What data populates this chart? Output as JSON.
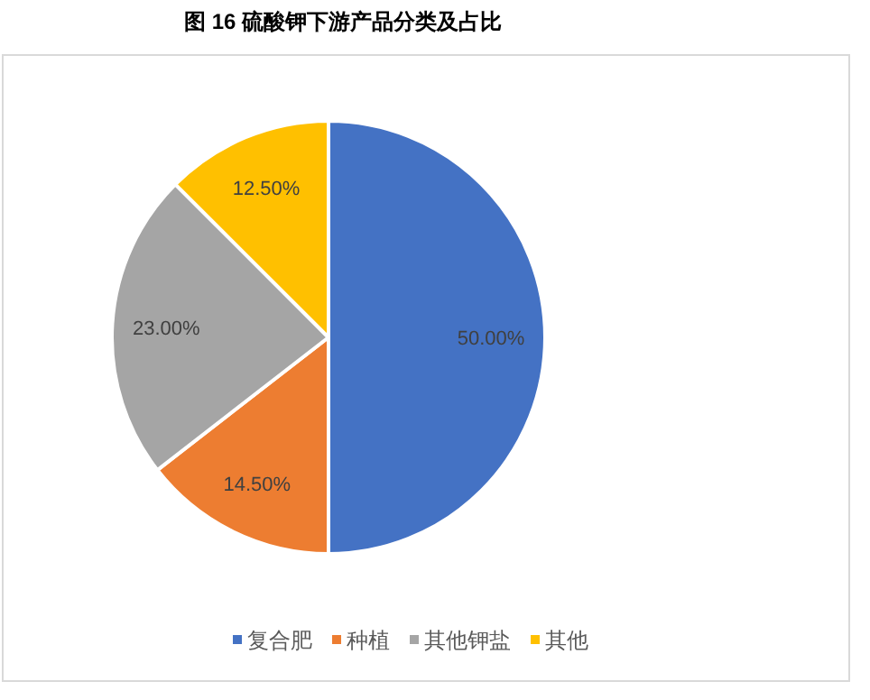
{
  "chart_data": {
    "type": "pie",
    "title": "图 16 硫酸钾下游产品分类及占比",
    "categories": [
      "复合肥",
      "种植",
      "其他钾盐",
      "其他"
    ],
    "values": [
      50,
      14.5,
      23,
      12.5
    ],
    "colors": [
      "#4472c4",
      "#ed7d31",
      "#a5a5a5",
      "#ffc000"
    ],
    "value_labels": [
      "50.00%",
      "14.50%",
      "23.00%",
      "12.50%"
    ],
    "legend": "bottom"
  }
}
